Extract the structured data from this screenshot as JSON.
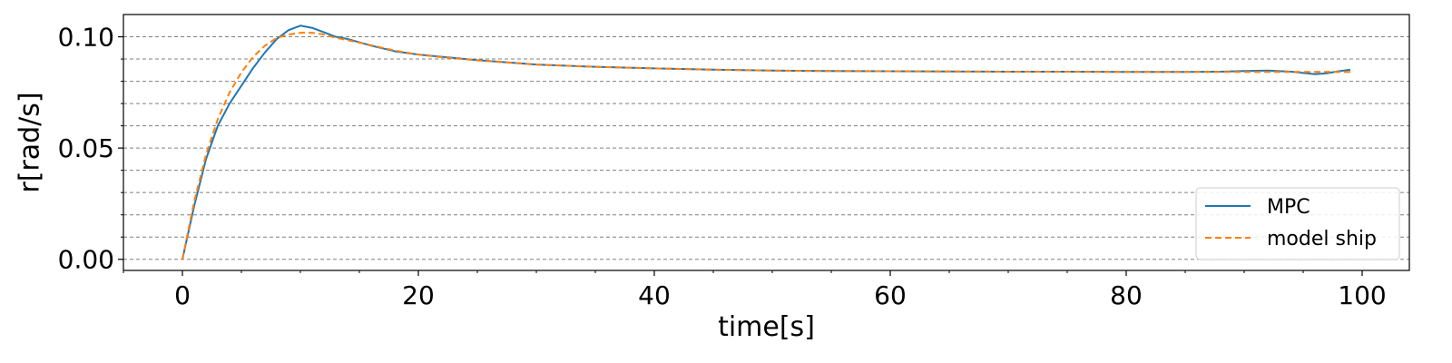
{
  "chart_data": {
    "type": "line",
    "xlabel": "time[s]",
    "ylabel": "r[rad/s]",
    "xlim": [
      -5,
      104
    ],
    "ylim": [
      -0.005,
      0.11
    ],
    "x_ticks": [
      0,
      20,
      40,
      60,
      80,
      100
    ],
    "x_tick_labels": [
      "0",
      "20",
      "40",
      "60",
      "80",
      "100"
    ],
    "y_ticks": [
      0.0,
      0.05,
      0.1
    ],
    "y_tick_labels": [
      "0.00",
      "0.05",
      "0.10"
    ],
    "y_gridlines": [
      0.0,
      0.01,
      0.02,
      0.03,
      0.04,
      0.05,
      0.06,
      0.07,
      0.08,
      0.09,
      0.1
    ],
    "grid": "horizontal dashed",
    "legend_position": "lower-right",
    "colors": {
      "MPC": "#1f77b4",
      "model ship": "#ff7f0e"
    },
    "series": [
      {
        "name": "MPC",
        "style": "solid",
        "x": [
          0,
          1,
          2,
          3,
          4,
          5,
          6,
          7,
          8,
          9,
          10,
          11,
          12,
          13,
          14,
          16,
          18,
          20,
          22,
          25,
          30,
          35,
          40,
          45,
          50,
          55,
          60,
          65,
          70,
          75,
          80,
          85,
          88,
          90,
          92,
          94,
          96,
          97,
          98,
          99
        ],
        "y": [
          0.0,
          0.024,
          0.045,
          0.06,
          0.07,
          0.078,
          0.086,
          0.093,
          0.099,
          0.103,
          0.105,
          0.104,
          0.102,
          0.1,
          0.099,
          0.096,
          0.0935,
          0.092,
          0.091,
          0.0895,
          0.0875,
          0.0865,
          0.0858,
          0.0852,
          0.0848,
          0.0846,
          0.0845,
          0.0844,
          0.0843,
          0.0843,
          0.0842,
          0.0842,
          0.0843,
          0.0846,
          0.0848,
          0.0843,
          0.0832,
          0.0836,
          0.0845,
          0.0852
        ]
      },
      {
        "name": "model ship",
        "style": "dashed",
        "x": [
          0,
          1,
          2,
          3,
          4,
          5,
          6,
          7,
          8,
          9,
          10,
          11,
          12,
          13,
          14,
          16,
          18,
          20,
          22,
          25,
          30,
          35,
          40,
          45,
          50,
          55,
          60,
          65,
          70,
          75,
          80,
          85,
          90,
          95,
          99
        ],
        "y": [
          0.0,
          0.026,
          0.047,
          0.063,
          0.075,
          0.084,
          0.091,
          0.096,
          0.0995,
          0.101,
          0.1018,
          0.1018,
          0.101,
          0.0995,
          0.0985,
          0.0962,
          0.0938,
          0.092,
          0.0908,
          0.0894,
          0.0875,
          0.0865,
          0.0858,
          0.0852,
          0.0848,
          0.0846,
          0.0845,
          0.0844,
          0.0843,
          0.0843,
          0.0842,
          0.0842,
          0.0842,
          0.0842,
          0.0842
        ]
      }
    ]
  }
}
